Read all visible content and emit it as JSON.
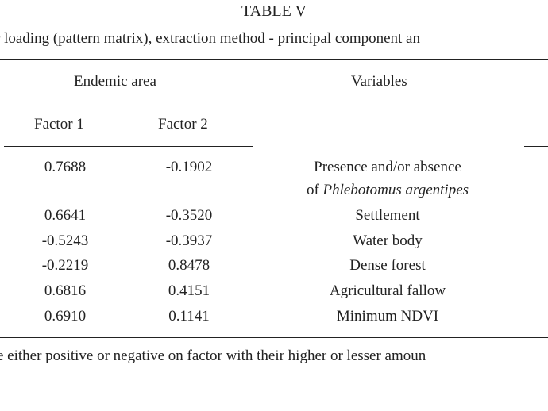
{
  "table": {
    "title": "TABLE V",
    "caption": "r loading (pattern matrix), extraction method - principal component an",
    "header": {
      "group": "Endemic area",
      "variables": "Variables"
    },
    "columns": [
      "Factor 1",
      "Factor 2"
    ],
    "rows": [
      {
        "f1": "0.7688",
        "f2": "-0.1902",
        "var_line1": "Presence and/or absence",
        "var_prefix": "of ",
        "var_italic": "Phlebotomus argentipes"
      },
      {
        "f1": "0.6641",
        "f2": "-0.3520",
        "var": "Settlement"
      },
      {
        "f1": "-0.5243",
        "f2": "-0.3937",
        "var": "Water body"
      },
      {
        "f1": "-0.2219",
        "f2": "0.8478",
        "var": "Dense forest"
      },
      {
        "f1": "0.6816",
        "f2": "0.4151",
        "var": "Agricultural fallow"
      },
      {
        "f1": "0.6910",
        "f2": "0.1141",
        "var": "Minimum NDVI"
      }
    ],
    "footnote": "e either positive or negative on factor with their higher or lesser amoun"
  }
}
